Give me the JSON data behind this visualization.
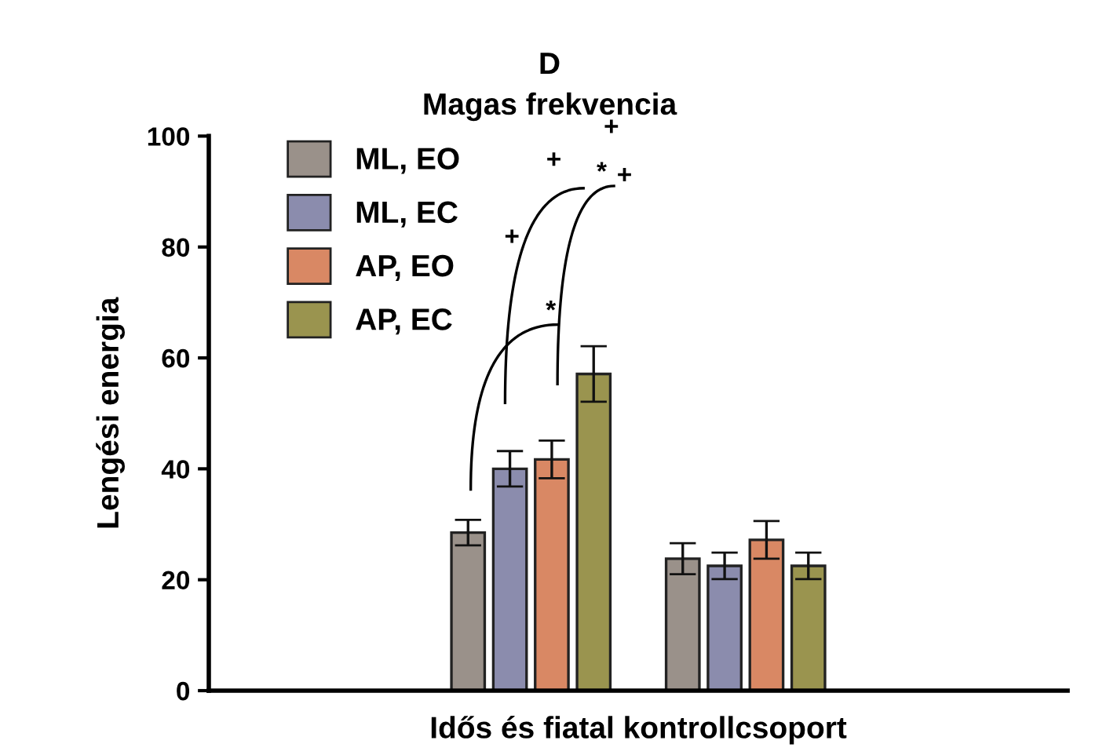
{
  "chart_data": {
    "type": "bar",
    "title": "D",
    "subtitle": "Magas frekvencia",
    "xlabel": "Idős és fiatal kontrollcsoport",
    "ylabel": "Lengési energia",
    "categories": [
      null,
      null
    ],
    "series": [
      {
        "name": "ML, EO",
        "color": "#9a918a",
        "values": [
          28.5,
          23.8
        ],
        "errors": [
          2.3,
          2.8
        ]
      },
      {
        "name": "ML, EC",
        "color": "#8b8cad",
        "values": [
          40.0,
          22.5
        ],
        "errors": [
          3.2,
          2.4
        ]
      },
      {
        "name": "AP, EO",
        "color": "#d98864",
        "values": [
          41.7,
          27.2
        ],
        "errors": [
          3.4,
          3.4
        ]
      },
      {
        "name": "AP, EC",
        "color": "#9a944f",
        "values": [
          57.1,
          22.5
        ],
        "errors": [
          5.0,
          2.4
        ]
      }
    ],
    "ylim": [
      0,
      100
    ],
    "yticks": [
      0,
      20,
      40,
      60,
      80,
      100
    ],
    "grid": false,
    "legend": "top left",
    "annotations": [
      "+",
      "+",
      "+",
      "*",
      "+",
      "*"
    ]
  }
}
